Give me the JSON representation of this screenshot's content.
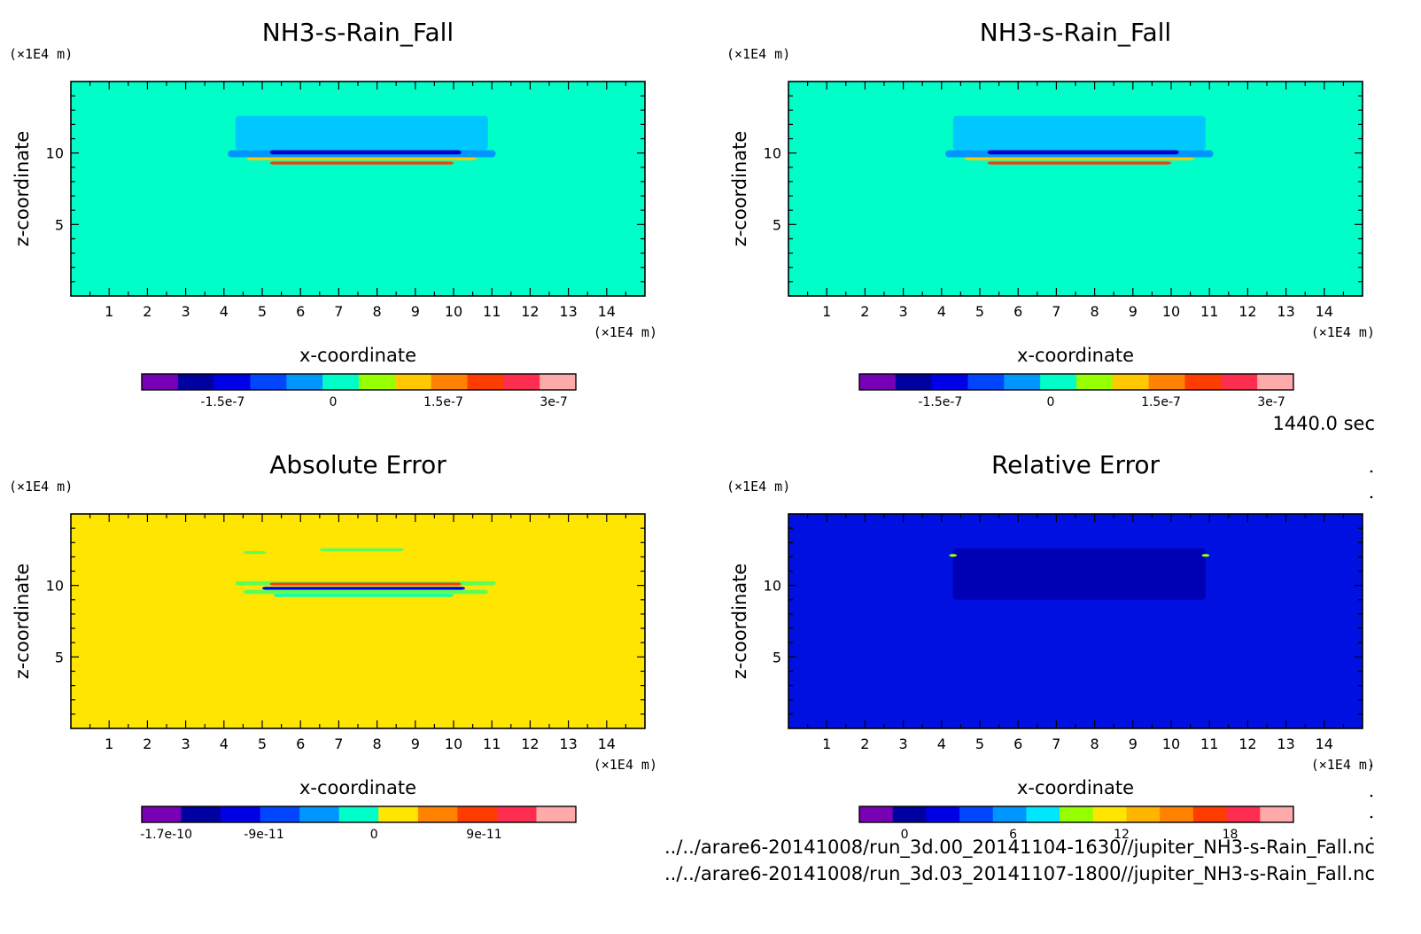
{
  "time_label": "1440.0 sec",
  "footer": {
    "file1": "../../arare6-20141008/run_3d.00_20141104-1630//jupiter_NH3-s-Rain_Fall.nc",
    "file2": "../../arare6-20141008/run_3d.03_20141107-1800//jupiter_NH3-s-Rain_Fall.nc"
  },
  "colors": {
    "cyan_bg": "#00ffc8",
    "yellow_bg": "#ffe600",
    "blue_bg": "#0010e0"
  },
  "chart_data": [
    {
      "type": "heatmap",
      "title": "NH3-s-Rain_Fall",
      "xlabel": "x-coordinate",
      "ylabel": "z-coordinate",
      "x_unit": "(×1E4 m)",
      "y_unit": "(×1E4 m)",
      "xlim": [
        0,
        15
      ],
      "ylim": [
        0,
        15
      ],
      "x_ticks": [
        1,
        2,
        3,
        4,
        5,
        6,
        7,
        8,
        9,
        10,
        11,
        12,
        13,
        14
      ],
      "y_ticks": [
        5,
        10
      ],
      "background": "#00ffc8",
      "colorbar": {
        "colors": [
          "#7800b4",
          "#0000a0",
          "#0000e6",
          "#0046ff",
          "#0096ff",
          "#00ffc8",
          "#96ff00",
          "#ffc800",
          "#ff8200",
          "#ff3c00",
          "#ff2d50",
          "#ffaaaa"
        ],
        "ticks": [
          {
            "value": -1.5e-07,
            "label": "-1.5e-7"
          },
          {
            "value": 0,
            "label": "0"
          },
          {
            "value": 1.5e-07,
            "label": "1.5e-7"
          },
          {
            "value": 3e-07,
            "label": "3e-7"
          }
        ],
        "range": [
          -2.6e-07,
          3.3e-07
        ]
      },
      "features": [
        {
          "x": [
            4.3,
            10.9
          ],
          "z": [
            10.2,
            12.6
          ],
          "color": "#00c8ff"
        },
        {
          "x": [
            4.1,
            11.1
          ],
          "z": [
            9.7,
            10.2
          ],
          "color": "#0096ff"
        },
        {
          "x": [
            5.2,
            10.2
          ],
          "z": [
            9.9,
            10.2
          ],
          "color": "#0000c8"
        },
        {
          "x": [
            4.6,
            10.6
          ],
          "z": [
            9.5,
            9.7
          ],
          "color": "#ffc800"
        },
        {
          "x": [
            5.2,
            10.0
          ],
          "z": [
            9.2,
            9.4
          ],
          "color": "#ff3c00"
        }
      ]
    },
    {
      "type": "heatmap",
      "title": "NH3-s-Rain_Fall",
      "xlabel": "x-coordinate",
      "ylabel": "z-coordinate",
      "x_unit": "(×1E4 m)",
      "y_unit": "(×1E4 m)",
      "xlim": [
        0,
        15
      ],
      "ylim": [
        0,
        15
      ],
      "x_ticks": [
        1,
        2,
        3,
        4,
        5,
        6,
        7,
        8,
        9,
        10,
        11,
        12,
        13,
        14
      ],
      "y_ticks": [
        5,
        10
      ],
      "background": "#00ffc8",
      "colorbar": {
        "colors": [
          "#7800b4",
          "#0000a0",
          "#0000e6",
          "#0046ff",
          "#0096ff",
          "#00ffc8",
          "#96ff00",
          "#ffc800",
          "#ff8200",
          "#ff3c00",
          "#ff2d50",
          "#ffaaaa"
        ],
        "ticks": [
          {
            "value": -1.5e-07,
            "label": "-1.5e-7"
          },
          {
            "value": 0,
            "label": "0"
          },
          {
            "value": 1.5e-07,
            "label": "1.5e-7"
          },
          {
            "value": 3e-07,
            "label": "3e-7"
          }
        ],
        "range": [
          -2.6e-07,
          3.3e-07
        ]
      },
      "features": [
        {
          "x": [
            4.3,
            10.9
          ],
          "z": [
            10.2,
            12.6
          ],
          "color": "#00c8ff"
        },
        {
          "x": [
            4.1,
            11.1
          ],
          "z": [
            9.7,
            10.2
          ],
          "color": "#0096ff"
        },
        {
          "x": [
            5.2,
            10.2
          ],
          "z": [
            9.9,
            10.2
          ],
          "color": "#0000c8"
        },
        {
          "x": [
            4.6,
            10.6
          ],
          "z": [
            9.5,
            9.7
          ],
          "color": "#ffc800"
        },
        {
          "x": [
            5.2,
            10.0
          ],
          "z": [
            9.2,
            9.4
          ],
          "color": "#ff3c00"
        }
      ]
    },
    {
      "type": "heatmap",
      "title": "Absolute Error",
      "xlabel": "x-coordinate",
      "ylabel": "z-coordinate",
      "x_unit": "(×1E4 m)",
      "y_unit": "(×1E4 m)",
      "xlim": [
        0,
        15
      ],
      "ylim": [
        0,
        15
      ],
      "x_ticks": [
        1,
        2,
        3,
        4,
        5,
        6,
        7,
        8,
        9,
        10,
        11,
        12,
        13,
        14
      ],
      "y_ticks": [
        5,
        10
      ],
      "background": "#ffe600",
      "colorbar": {
        "colors": [
          "#7800b4",
          "#0000a0",
          "#0000e6",
          "#0046ff",
          "#0096ff",
          "#00ffc8",
          "#ffe600",
          "#ff8200",
          "#ff3c00",
          "#ff2d50",
          "#ffaaaa"
        ],
        "ticks": [
          {
            "value": -1.7e-10,
            "label": "-1.7e-10"
          },
          {
            "value": -9e-11,
            "label": "-9e-11"
          },
          {
            "value": 0,
            "label": "0"
          },
          {
            "value": 9e-11,
            "label": "9e-11"
          }
        ],
        "range": [
          -1.9e-10,
          1.65e-10
        ]
      },
      "features": [
        {
          "x": [
            6.5,
            8.7
          ],
          "z": [
            12.4,
            12.6
          ],
          "color": "#5aff5a"
        },
        {
          "x": [
            4.5,
            5.1
          ],
          "z": [
            12.2,
            12.4
          ],
          "color": "#5aff5a"
        },
        {
          "x": [
            4.3,
            11.1
          ],
          "z": [
            10.0,
            10.3
          ],
          "color": "#5aff5a"
        },
        {
          "x": [
            4.5,
            10.9
          ],
          "z": [
            9.4,
            9.7
          ],
          "color": "#5aff5a"
        },
        {
          "x": [
            5.2,
            10.2
          ],
          "z": [
            10.0,
            10.2
          ],
          "color": "#ff3c00"
        },
        {
          "x": [
            5.0,
            10.3
          ],
          "z": [
            9.7,
            9.9
          ],
          "color": "#0000e6"
        },
        {
          "x": [
            5.3,
            10.0
          ],
          "z": [
            9.2,
            9.4
          ],
          "color": "#00ffc8"
        }
      ]
    },
    {
      "type": "heatmap",
      "title": "Relative Error",
      "xlabel": "x-coordinate",
      "ylabel": "z-coordinate",
      "x_unit": "(×1E4 m)",
      "y_unit": "(×1E4 m)",
      "xlim": [
        0,
        15
      ],
      "ylim": [
        0,
        15
      ],
      "x_ticks": [
        1,
        2,
        3,
        4,
        5,
        6,
        7,
        8,
        9,
        10,
        11,
        12,
        13,
        14
      ],
      "y_ticks": [
        5,
        10
      ],
      "background": "#0010e0",
      "colorbar": {
        "colors": [
          "#7800b4",
          "#0000a0",
          "#0000e6",
          "#0046ff",
          "#0096ff",
          "#00e6ff",
          "#96ff00",
          "#ffe600",
          "#ffb400",
          "#ff8200",
          "#ff3c00",
          "#ff2d50",
          "#ffaaaa"
        ],
        "ticks": [
          {
            "value": 0,
            "label": "0"
          },
          {
            "value": 6,
            "label": "6"
          },
          {
            "value": 12,
            "label": "12"
          },
          {
            "value": 18,
            "label": "18"
          }
        ],
        "range": [
          -2.5,
          21.5
        ]
      },
      "features": [
        {
          "x": [
            4.3,
            10.9
          ],
          "z": [
            9.0,
            12.6
          ],
          "color": "#0000b4"
        },
        {
          "x": [
            4.2,
            4.4
          ],
          "z": [
            12.0,
            12.2
          ],
          "color": "#96ff00"
        },
        {
          "x": [
            10.8,
            11.0
          ],
          "z": [
            12.0,
            12.2
          ],
          "color": "#96ff00"
        }
      ]
    }
  ]
}
